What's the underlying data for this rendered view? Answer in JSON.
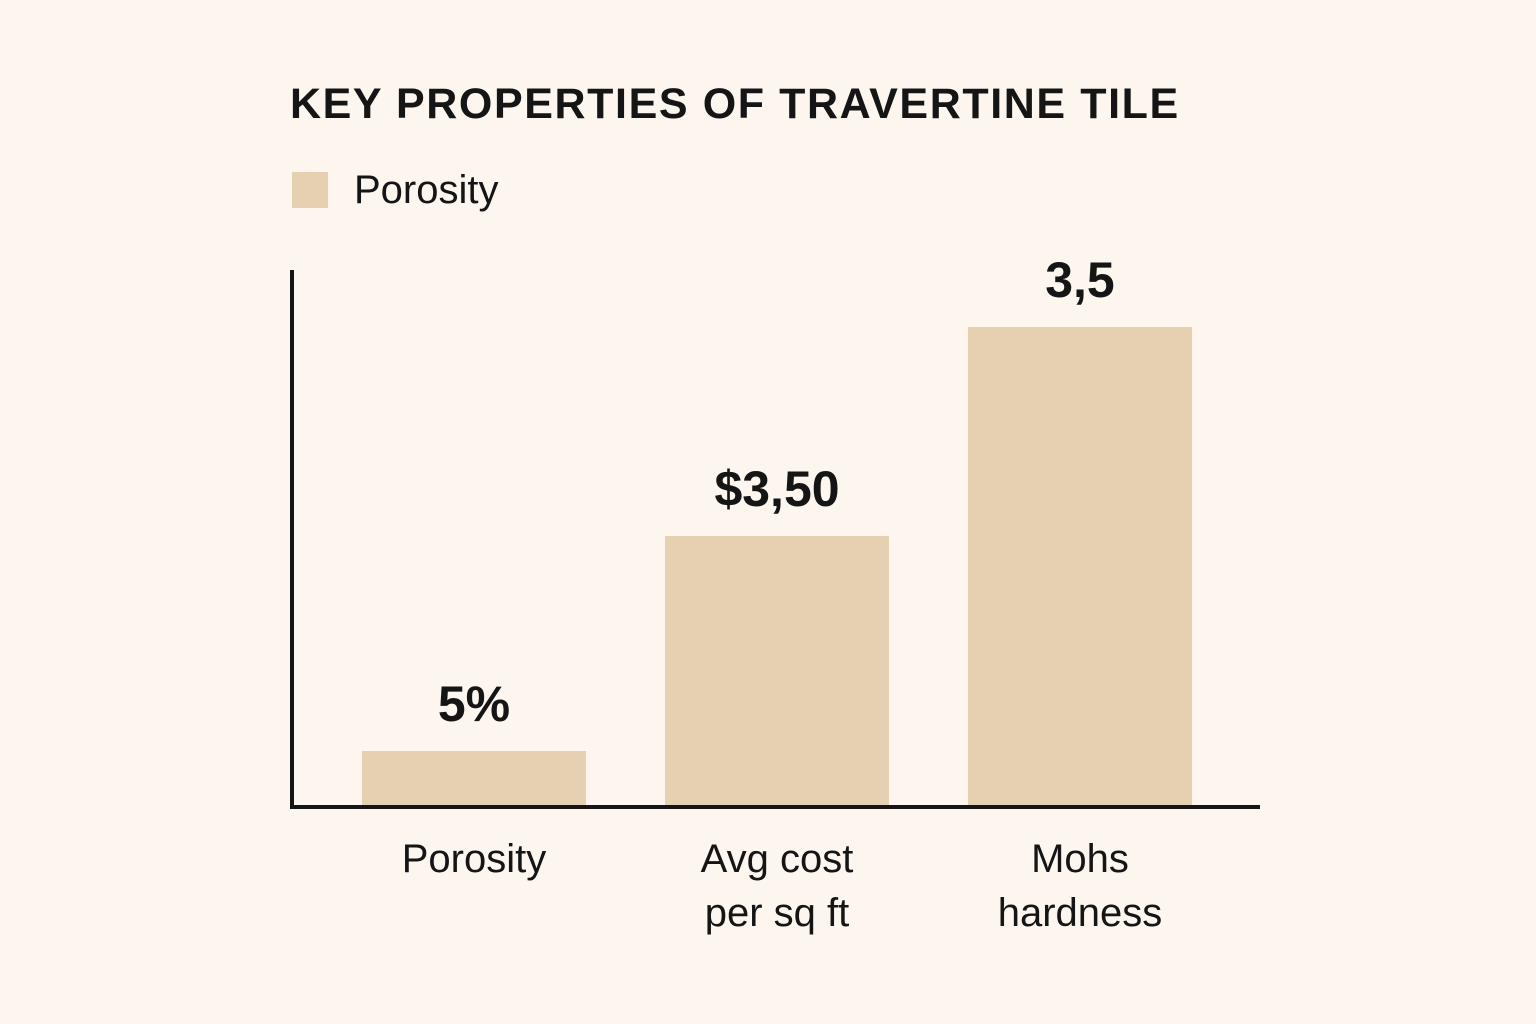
{
  "colors": {
    "background": "#fcf6ee",
    "bar": "#e6d0b2",
    "text": "#151515"
  },
  "chart_data": {
    "type": "bar",
    "title": "KEY PROPERTIES OF TRAVERTINE TILE",
    "legend": {
      "entries": [
        "Porosity"
      ],
      "placement": "top-left"
    },
    "categories": [
      [
        "Porosity"
      ],
      [
        "Avg cost",
        "per sq ft"
      ],
      [
        "Mohs",
        "hardness"
      ]
    ],
    "series": [
      {
        "name": "Porosity",
        "values": [
          5,
          3.5,
          3.5
        ],
        "data_labels": [
          "5%",
          "$3,50",
          "3,5"
        ]
      }
    ],
    "xlabel": "",
    "ylabel": "",
    "grid": false
  }
}
